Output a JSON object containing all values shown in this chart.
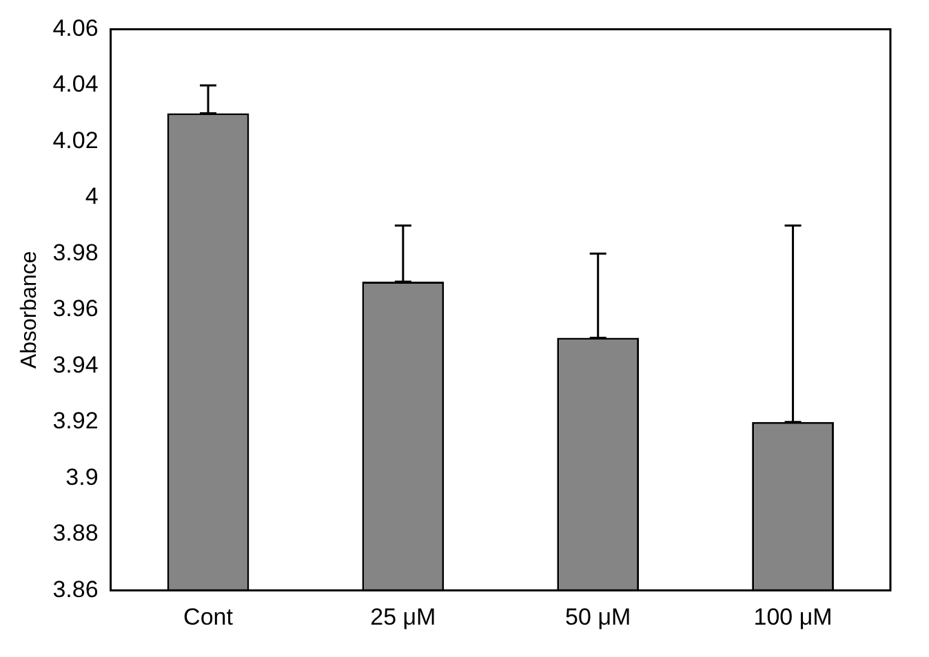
{
  "chart_data": {
    "type": "bar",
    "ylabel": "Absorbance",
    "categories": [
      "Cont",
      "25 μM",
      "50 μM",
      "100 μM"
    ],
    "values": [
      4.03,
      3.97,
      3.95,
      3.92
    ],
    "errors": [
      [
        4.03,
        4.04
      ],
      [
        3.97,
        3.99
      ],
      [
        3.95,
        3.98
      ],
      [
        3.92,
        3.99
      ]
    ],
    "color": "#858585",
    "ylim": [
      3.86,
      4.06
    ],
    "yticks": [
      3.86,
      3.88,
      3.9,
      3.92,
      3.94,
      3.96,
      3.98,
      4,
      4.02,
      4.04,
      4.06
    ],
    "grid": false
  }
}
